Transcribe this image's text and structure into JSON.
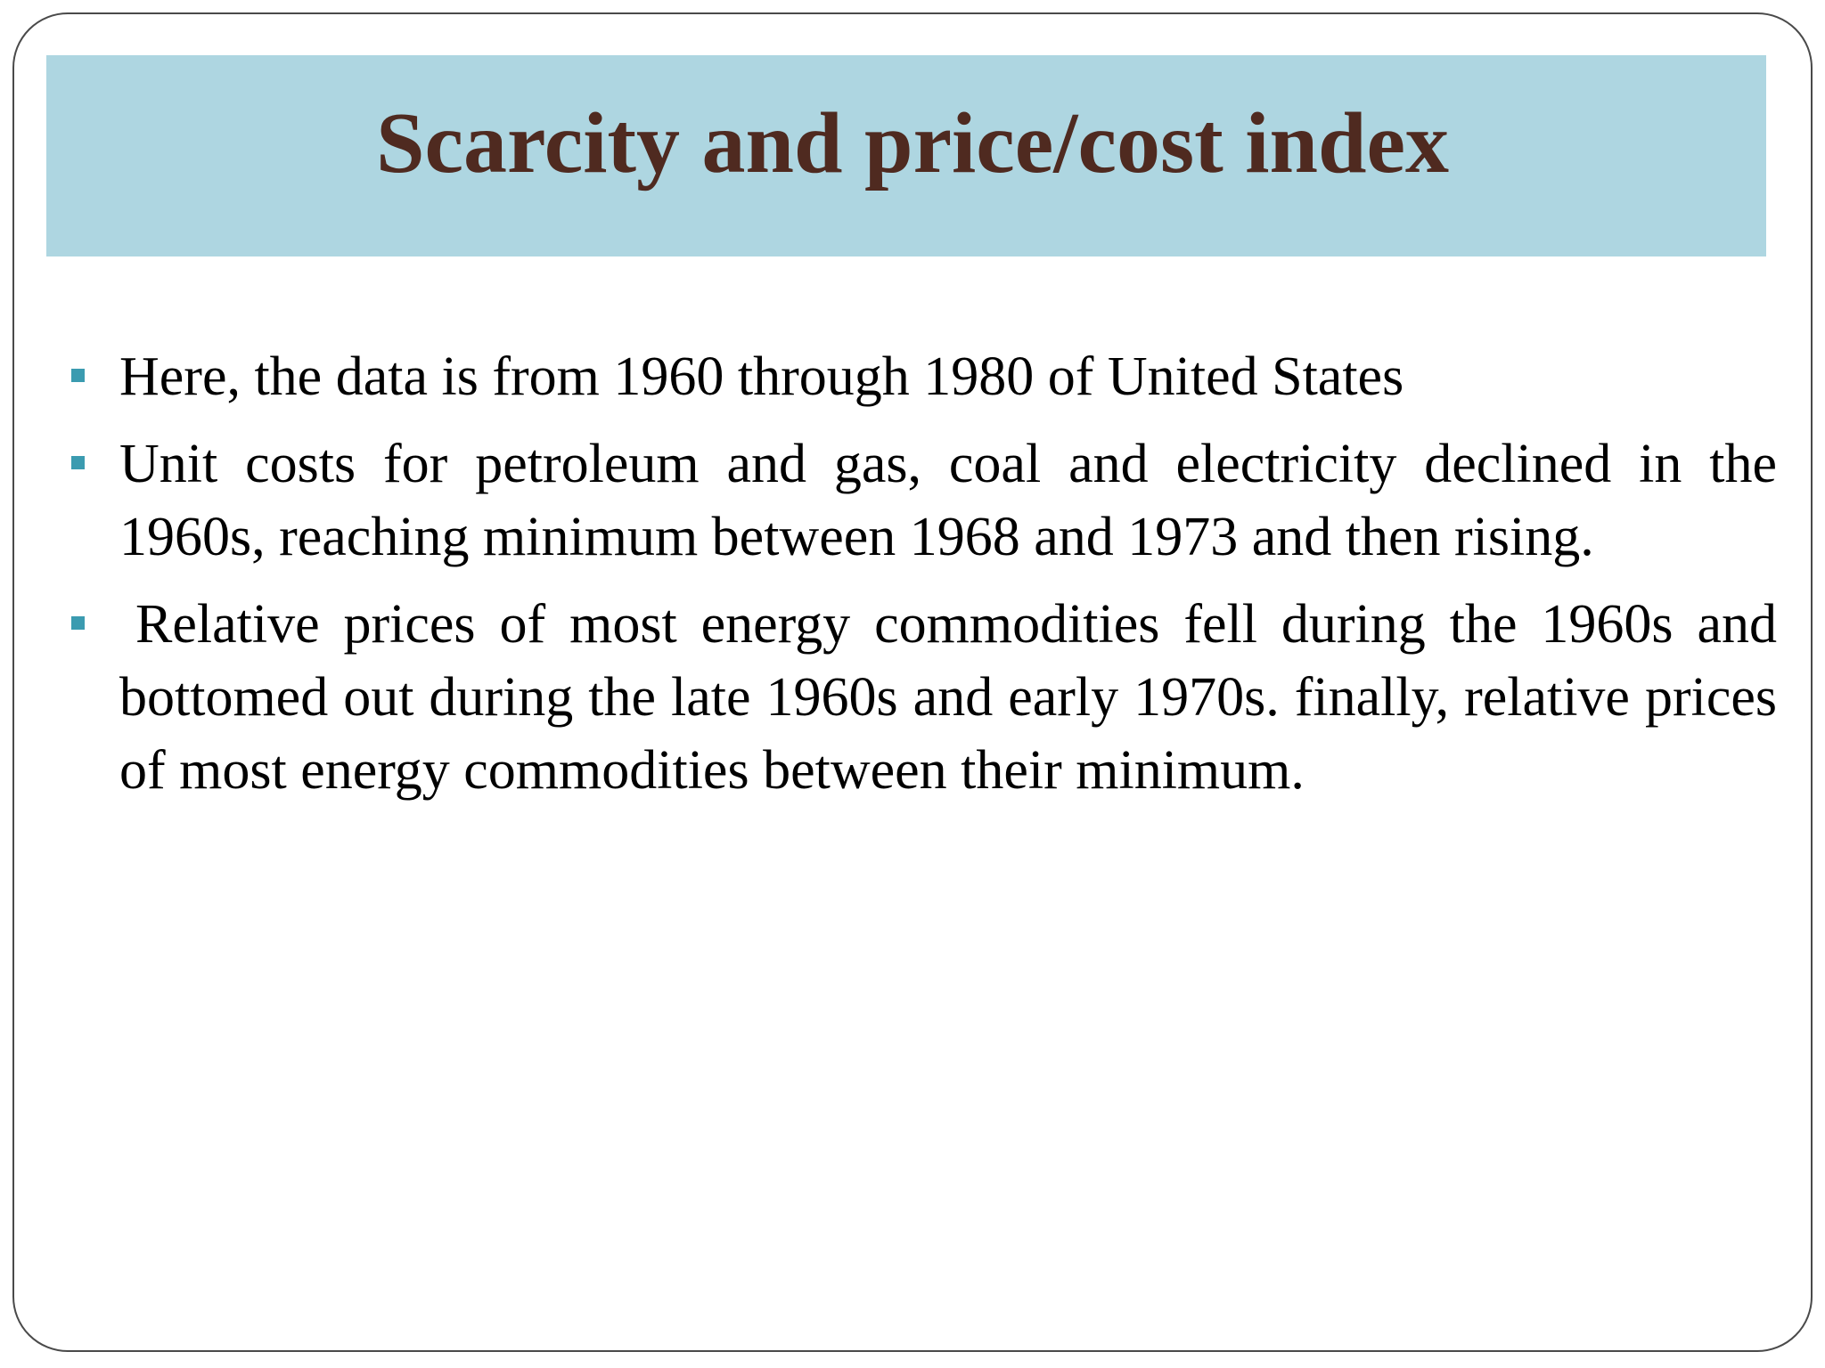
{
  "slide": {
    "title": "Scarcity and price/cost index",
    "colors": {
      "title_band": "#aed6e1",
      "title_text": "#4f2a20",
      "bullet_marker": "#3b9bb0",
      "body_text": "#000000"
    },
    "bullets": [
      {
        "text": "Here, the data is from 1960 through 1980 of United States"
      },
      {
        "text": "Unit costs for petroleum and gas, coal and electricity declined in the 1960s, reaching minimum between 1968 and 1973 and then rising."
      },
      {
        "text": "Relative prices of most energy commodities fell during the 1960s and bottomed out during the late 1960s and early 1970s. finally, relative prices of most energy commodities between their minimum."
      }
    ]
  }
}
